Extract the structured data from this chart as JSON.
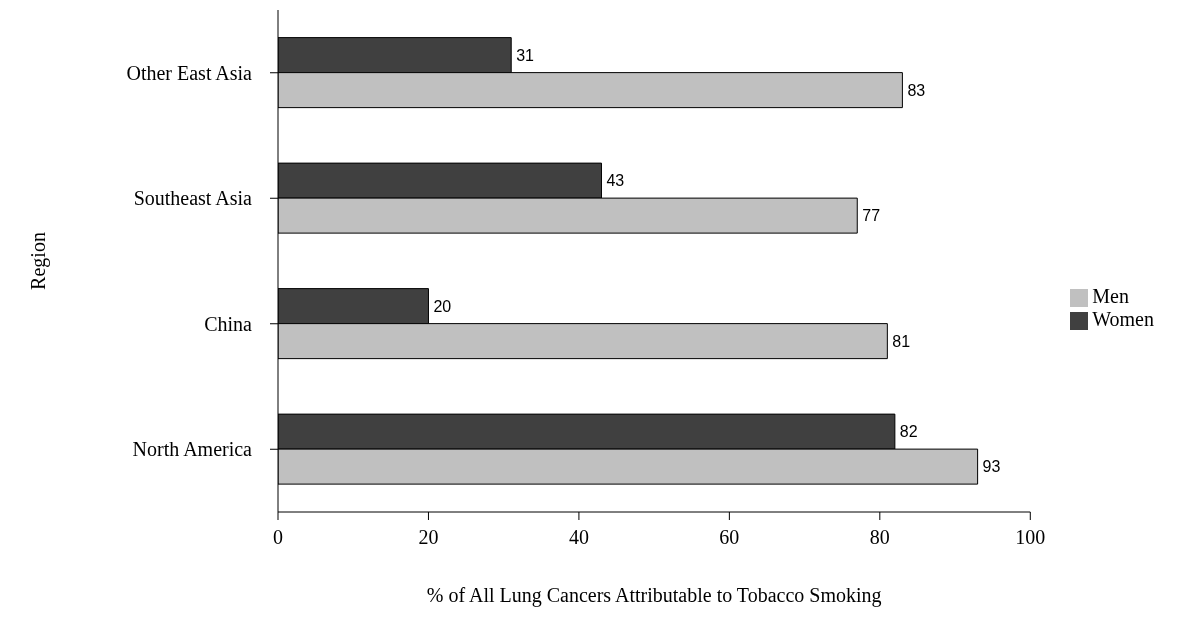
{
  "chart_data": {
    "type": "bar",
    "orientation": "horizontal",
    "xlabel": "% of All Lung Cancers Attributable to Tobacco Smoking",
    "ylabel": "Region",
    "categories": [
      "Other East Asia",
      "Southeast Asia",
      "China",
      "North America"
    ],
    "series": [
      {
        "name": "Women",
        "color": "#404040",
        "values": [
          31,
          43,
          20,
          82
        ]
      },
      {
        "name": "Men",
        "color": "#c0c0c0",
        "values": [
          83,
          77,
          81,
          93
        ]
      }
    ],
    "xlim": [
      0,
      100
    ],
    "xticks": [
      0,
      20,
      40,
      60,
      80,
      100
    ],
    "data_labels": true,
    "legend": "right",
    "grid": false
  }
}
